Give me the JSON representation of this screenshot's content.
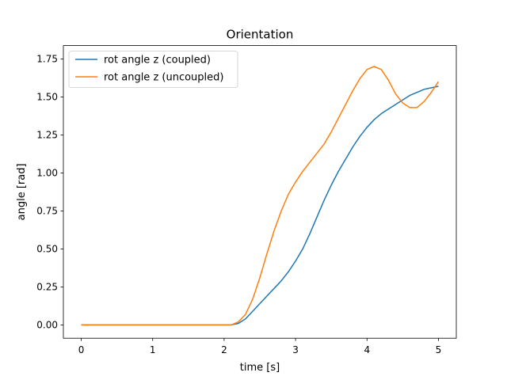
{
  "chart_data": {
    "type": "line",
    "title": "Orientation",
    "xlabel": "time [s]",
    "ylabel": "angle [rad]",
    "xlim": [
      -0.25,
      5.25
    ],
    "ylim": [
      -0.0875,
      1.8375
    ],
    "xticks": [
      0,
      1,
      2,
      3,
      4,
      5
    ],
    "yticks": [
      0.0,
      0.25,
      0.5,
      0.75,
      1.0,
      1.25,
      1.5,
      1.75
    ],
    "xtick_labels": [
      "0",
      "1",
      "2",
      "3",
      "4",
      "5"
    ],
    "ytick_labels": [
      "0.00",
      "0.25",
      "0.50",
      "0.75",
      "1.00",
      "1.25",
      "1.50",
      "1.75"
    ],
    "grid": false,
    "legend_position": "top-left",
    "series": [
      {
        "name": "rot angle z (coupled)",
        "color": "#1f77b4",
        "x": [
          0,
          0.5,
          1.0,
          1.5,
          2.0,
          2.1,
          2.2,
          2.3,
          2.4,
          2.5,
          2.6,
          2.7,
          2.8,
          2.9,
          3.0,
          3.1,
          3.2,
          3.3,
          3.4,
          3.5,
          3.6,
          3.7,
          3.8,
          3.9,
          4.0,
          4.1,
          4.2,
          4.3,
          4.4,
          4.5,
          4.6,
          4.7,
          4.8,
          4.9,
          5.0
        ],
        "y": [
          0,
          0,
          0,
          0,
          0,
          0.0,
          0.01,
          0.04,
          0.09,
          0.14,
          0.19,
          0.24,
          0.29,
          0.35,
          0.42,
          0.5,
          0.6,
          0.71,
          0.82,
          0.92,
          1.01,
          1.09,
          1.17,
          1.24,
          1.3,
          1.35,
          1.39,
          1.42,
          1.45,
          1.48,
          1.51,
          1.53,
          1.55,
          1.56,
          1.57
        ]
      },
      {
        "name": "rot angle z (uncoupled)",
        "color": "#ff7f0e",
        "x": [
          0,
          0.5,
          1.0,
          1.5,
          2.0,
          2.1,
          2.2,
          2.3,
          2.4,
          2.5,
          2.6,
          2.7,
          2.8,
          2.9,
          3.0,
          3.1,
          3.2,
          3.3,
          3.4,
          3.5,
          3.6,
          3.7,
          3.8,
          3.9,
          4.0,
          4.1,
          4.2,
          4.3,
          4.4,
          4.5,
          4.6,
          4.7,
          4.8,
          4.9,
          5.0
        ],
        "y": [
          0,
          0,
          0,
          0,
          0,
          0.0,
          0.02,
          0.07,
          0.17,
          0.31,
          0.47,
          0.62,
          0.75,
          0.86,
          0.94,
          1.01,
          1.07,
          1.13,
          1.19,
          1.27,
          1.36,
          1.45,
          1.54,
          1.62,
          1.68,
          1.7,
          1.68,
          1.61,
          1.52,
          1.46,
          1.43,
          1.43,
          1.47,
          1.53,
          1.6
        ]
      }
    ]
  }
}
